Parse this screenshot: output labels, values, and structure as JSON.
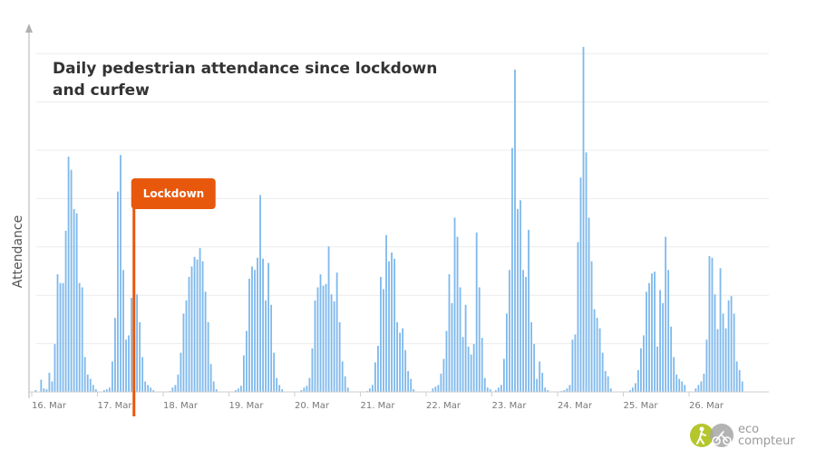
{
  "chart_data": {
    "type": "bar",
    "title_lines": [
      "Daily pedestrian attendance since lockdown",
      "and curfew"
    ],
    "ylabel": "Attendance",
    "xlabel": "",
    "x_tick_labels": [
      "16. Mar",
      "17. Mar",
      "18. Mar",
      "19. Mar",
      "20. Mar",
      "21. Mar",
      "22. Mar",
      "23. Mar",
      "24. Mar",
      "25. Mar",
      "26. Mar"
    ],
    "bar_interval": "hourly",
    "ylim": [
      0,
      400
    ],
    "gridlines": true,
    "annotation": {
      "label": "Lockdown",
      "at_day": 17.5,
      "color": "#E8580C"
    },
    "bar_color": "#7FB9EC",
    "values": [
      [
        0,
        2,
        0,
        14,
        4,
        3,
        22,
        12,
        55,
        135,
        125,
        125,
        185,
        270,
        255,
        210,
        205,
        125,
        120,
        40,
        20,
        15,
        8,
        3
      ],
      [
        0,
        0,
        2,
        3,
        5,
        35,
        85,
        230,
        272,
        140,
        60,
        65,
        108,
        132,
        112,
        80,
        40,
        12,
        8,
        5,
        2,
        0,
        0,
        0
      ],
      [
        0,
        0,
        1,
        5,
        8,
        20,
        45,
        90,
        105,
        132,
        144,
        155,
        152,
        165,
        150,
        115,
        80,
        32,
        12,
        3,
        0,
        0,
        0,
        0
      ],
      [
        0,
        0,
        2,
        4,
        7,
        42,
        70,
        130,
        144,
        140,
        154,
        226,
        153,
        105,
        148,
        100,
        45,
        16,
        8,
        3,
        0,
        0,
        0,
        0
      ],
      [
        0,
        0,
        2,
        5,
        7,
        16,
        50,
        105,
        120,
        135,
        122,
        124,
        167,
        112,
        104,
        137,
        80,
        35,
        18,
        5,
        0,
        0,
        0,
        0
      ],
      [
        0,
        0,
        1,
        4,
        8,
        34,
        53,
        132,
        118,
        180,
        150,
        160,
        153,
        80,
        68,
        73,
        48,
        24,
        15,
        3,
        0,
        0,
        0,
        0
      ],
      [
        0,
        0,
        4,
        6,
        8,
        21,
        38,
        70,
        135,
        102,
        200,
        178,
        120,
        63,
        100,
        52,
        43,
        55,
        183,
        120,
        62,
        16,
        5,
        3
      ],
      [
        0,
        2,
        5,
        8,
        38,
        90,
        140,
        280,
        370,
        210,
        220,
        140,
        132,
        186,
        80,
        55,
        15,
        35,
        22,
        5,
        2,
        0,
        0,
        0
      ],
      [
        0,
        1,
        2,
        4,
        8,
        60,
        66,
        172,
        246,
        396,
        275,
        200,
        150,
        95,
        85,
        73,
        45,
        24,
        18,
        4,
        0,
        0,
        0,
        0
      ],
      [
        0,
        0,
        2,
        5,
        10,
        25,
        50,
        65,
        115,
        125,
        136,
        138,
        52,
        117,
        102,
        178,
        140,
        75,
        40,
        20,
        15,
        12,
        8,
        0
      ],
      [
        0,
        0,
        4,
        8,
        12,
        21,
        60,
        156,
        154,
        112,
        72,
        142,
        90,
        73,
        105,
        110,
        90,
        35,
        25,
        12,
        0,
        0,
        0,
        0
      ]
    ]
  }
}
